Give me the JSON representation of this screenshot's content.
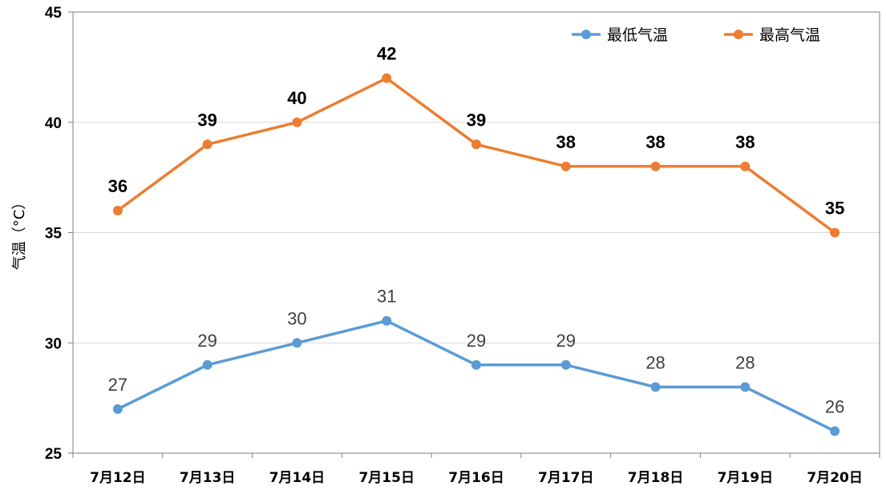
{
  "chart_data": {
    "type": "line",
    "categories": [
      "7月12日",
      "7月13日",
      "7月14日",
      "7月15日",
      "7月16日",
      "7月17日",
      "7月18日",
      "7月19日",
      "7月20日"
    ],
    "series": [
      {
        "name": "最低气温",
        "color": "#5B9BD5",
        "values": [
          27,
          29,
          30,
          31,
          29,
          29,
          28,
          28,
          26
        ]
      },
      {
        "name": "最高气温",
        "color": "#ED7D31",
        "values": [
          36,
          39,
          40,
          42,
          39,
          38,
          38,
          38,
          35
        ]
      }
    ],
    "title": "",
    "xlabel": "",
    "ylabel": "气温（°C）",
    "ylim": [
      25,
      45
    ],
    "yticks": [
      25,
      30,
      35,
      40,
      45
    ],
    "grid": true,
    "legend": "top-right",
    "data_labels": true
  }
}
